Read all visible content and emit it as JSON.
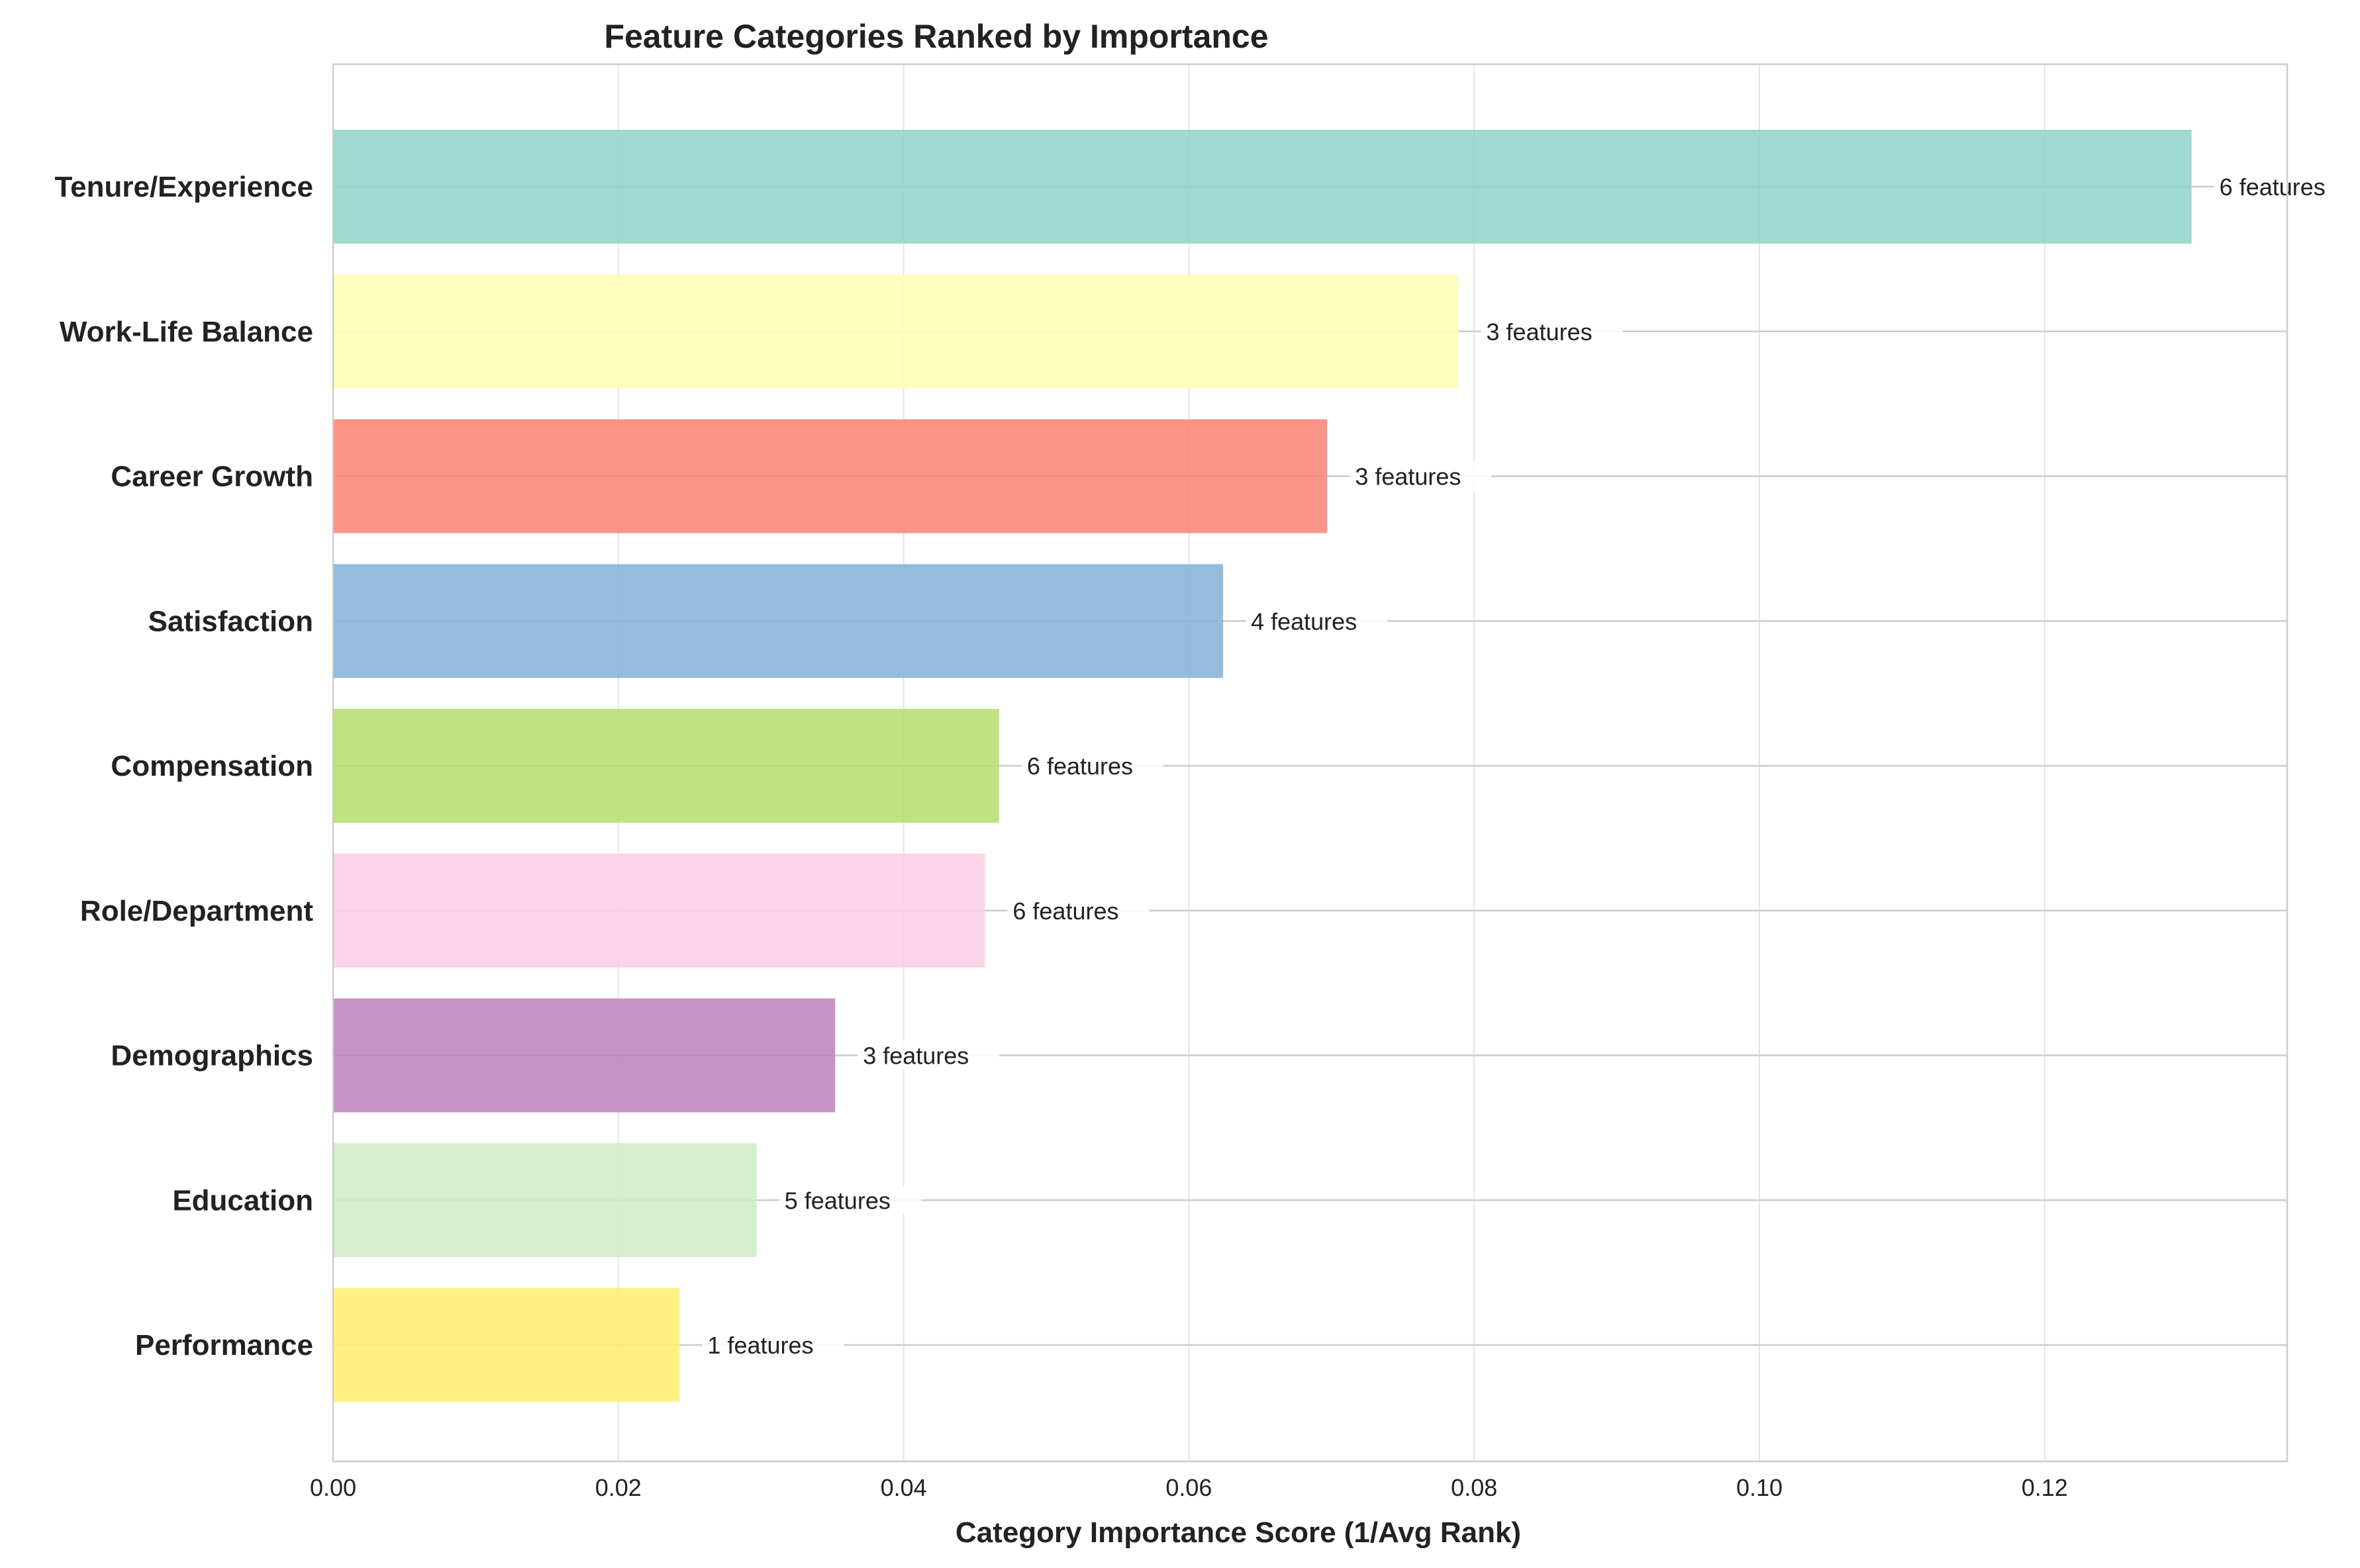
{
  "chart_data": {
    "type": "bar",
    "orientation": "horizontal",
    "title": "Feature Categories Ranked by Importance",
    "xlabel": "Category Importance Score (1/Avg Rank)",
    "ylabel": "",
    "xlim": [
      0,
      0.137
    ],
    "xticks": [
      "0.00",
      "0.02",
      "0.04",
      "0.06",
      "0.08",
      "0.10",
      "0.12"
    ],
    "grid": true,
    "categories": [
      "Tenure/Experience",
      "Work-Life Balance",
      "Career Growth",
      "Satisfaction",
      "Compensation",
      "Role/Department",
      "Demographics",
      "Education",
      "Performance"
    ],
    "values": [
      0.1303,
      0.0789,
      0.0697,
      0.0624,
      0.0467,
      0.0457,
      0.0352,
      0.0297,
      0.0243
    ],
    "annotations": [
      "6 features",
      "3 features",
      "3 features",
      "4 features",
      "6 features",
      "6 features",
      "3 features",
      "5 features",
      "1 features"
    ],
    "colors": [
      "#8dd3c7",
      "#ffffb3",
      "#fb8072",
      "#80b1d3",
      "#b3de69",
      "#fccde5",
      "#bc80bd",
      "#ccebc5",
      "#ffed6f"
    ]
  }
}
